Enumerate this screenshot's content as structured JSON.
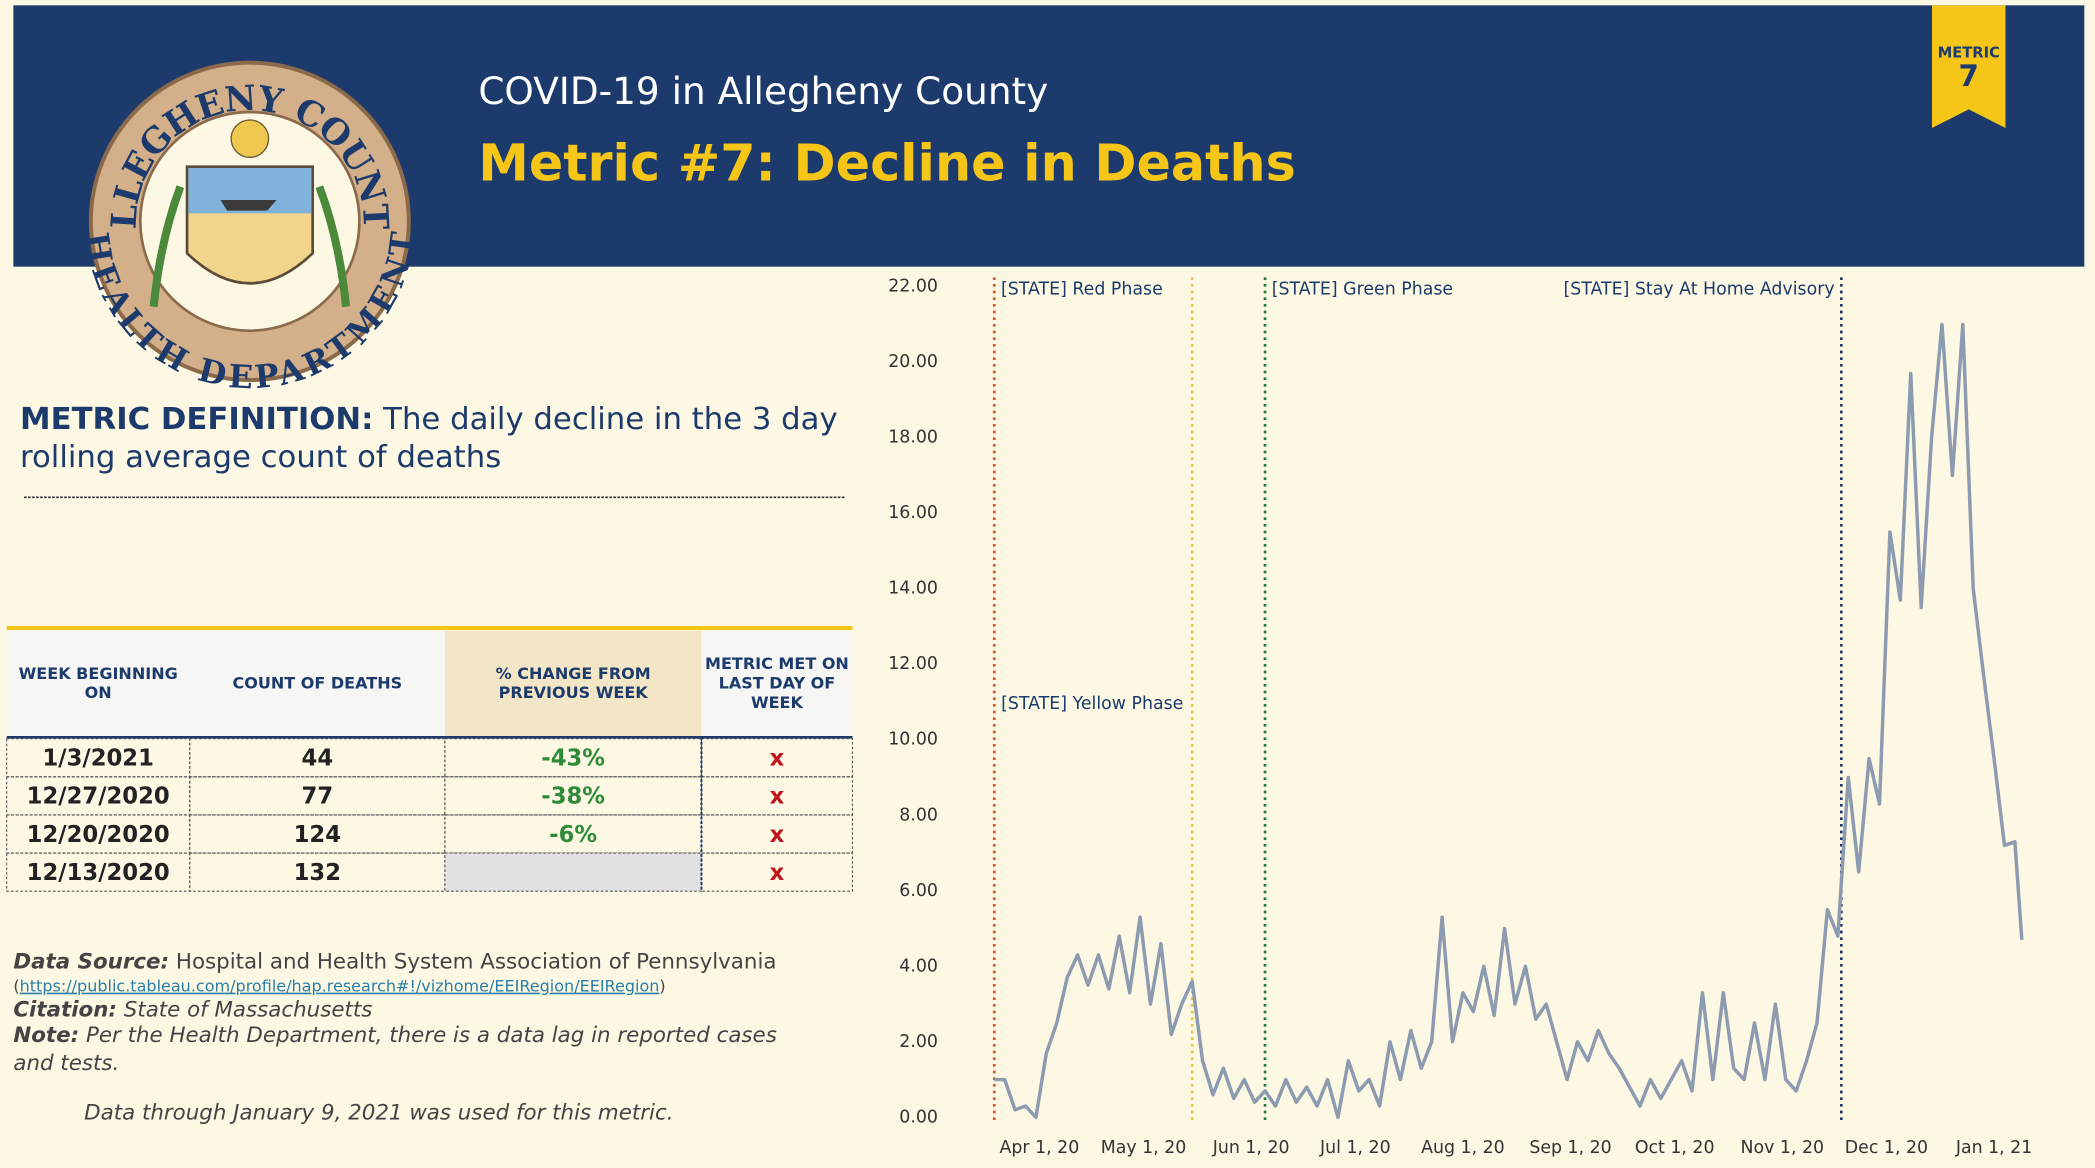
{
  "header": {
    "title": "COVID-19 in Allegheny County",
    "subtitle": "Metric #7: Decline in Deaths"
  },
  "logo": {
    "top_text": "ALLEGHENY COUNTY",
    "bottom_text": "HEALTH DEPARTMENT"
  },
  "badge": {
    "label": "METRIC",
    "number": "7"
  },
  "definition": {
    "label": "METRIC DEFINITION:",
    "lines": [
      "The daily decline in the 3 day",
      "rolling average count of deaths"
    ]
  },
  "table": {
    "headers": [
      [
        "WEEK BEGINNING",
        "ON"
      ],
      [
        "COUNT OF DEATHS"
      ],
      [
        "% CHANGE FROM",
        "PREVIOUS WEEK"
      ],
      [
        "METRIC MET ON",
        "LAST DAY OF",
        "WEEK"
      ]
    ],
    "rows": [
      [
        "1/3/2021",
        "44",
        "-43%",
        "x"
      ],
      [
        "12/27/2020",
        "77",
        "-38%",
        "x"
      ],
      [
        "12/20/2020",
        "124",
        "-6%",
        "x"
      ],
      [
        "12/13/2020",
        "132",
        null,
        "x"
      ]
    ]
  },
  "footer": {
    "source_label": "Data Source:",
    "source_text": "Hospital and Health System Association of Pennsylvania",
    "source_url": "https://public.tableau.com/profile/hap.research#!/vizhome/EEIRegion/EEIRegion",
    "url_open": "(",
    "url_close": ")",
    "citation_label": "Citation:",
    "citation_text": "State of Massachusetts",
    "note_label": "Note:",
    "note_lines": [
      "Per the Health Department, there is a data lag in reported cases",
      "and tests."
    ],
    "data_through": "Data through January 9, 2021 was used for this metric."
  },
  "chart_data": {
    "type": "line",
    "x": [
      "2020-03-19",
      "2020-03-22",
      "2020-03-25",
      "2020-03-28",
      "2020-03-31",
      "2020-04-03",
      "2020-04-06",
      "2020-04-09",
      "2020-04-12",
      "2020-04-15",
      "2020-04-18",
      "2020-04-21",
      "2020-04-24",
      "2020-04-27",
      "2020-04-30",
      "2020-05-03",
      "2020-05-06",
      "2020-05-09",
      "2020-05-12",
      "2020-05-15",
      "2020-05-18",
      "2020-05-21",
      "2020-05-24",
      "2020-05-27",
      "2020-05-30",
      "2020-06-02",
      "2020-06-05",
      "2020-06-08",
      "2020-06-11",
      "2020-06-14",
      "2020-06-17",
      "2020-06-20",
      "2020-06-23",
      "2020-06-26",
      "2020-06-29",
      "2020-07-02",
      "2020-07-05",
      "2020-07-08",
      "2020-07-11",
      "2020-07-14",
      "2020-07-17",
      "2020-07-20",
      "2020-07-23",
      "2020-07-26",
      "2020-07-29",
      "2020-08-01",
      "2020-08-04",
      "2020-08-07",
      "2020-08-10",
      "2020-08-13",
      "2020-08-16",
      "2020-08-19",
      "2020-08-22",
      "2020-08-25",
      "2020-08-28",
      "2020-08-31",
      "2020-09-03",
      "2020-09-06",
      "2020-09-09",
      "2020-09-12",
      "2020-09-15",
      "2020-09-18",
      "2020-09-21",
      "2020-09-24",
      "2020-09-27",
      "2020-09-30",
      "2020-10-03",
      "2020-10-06",
      "2020-10-09",
      "2020-10-12",
      "2020-10-15",
      "2020-10-18",
      "2020-10-21",
      "2020-10-24",
      "2020-10-27",
      "2020-10-30",
      "2020-11-02",
      "2020-11-05",
      "2020-11-08",
      "2020-11-11",
      "2020-11-14",
      "2020-11-17",
      "2020-11-20",
      "2020-11-23",
      "2020-11-26",
      "2020-11-29",
      "2020-12-02",
      "2020-12-05",
      "2020-12-08",
      "2020-12-11",
      "2020-12-14",
      "2020-12-17",
      "2020-12-20",
      "2020-12-23",
      "2020-12-26",
      "2020-12-29",
      "2021-01-01",
      "2021-01-04",
      "2021-01-07",
      "2021-01-09"
    ],
    "series": [
      {
        "color": "#8c9bb0",
        "values": [
          1.0,
          1.0,
          0.2,
          0.3,
          0,
          1.7,
          2.5,
          3.7,
          4.3,
          3.5,
          4.3,
          3.4,
          4.8,
          3.3,
          5.3,
          3.0,
          4.6,
          2.2,
          3.0,
          3.6,
          1.5,
          0.6,
          1.3,
          0.5,
          1.0,
          0.4,
          0.7,
          0.3,
          1.0,
          0.4,
          0.8,
          0.3,
          1.0,
          0,
          1.5,
          0.7,
          1.0,
          0.3,
          2.0,
          1.0,
          2.3,
          1.3,
          2.0,
          5.3,
          2.0,
          3.3,
          2.8,
          4.0,
          2.7,
          5.0,
          3.0,
          4.0,
          2.6,
          3.0,
          2.0,
          1.0,
          2.0,
          1.5,
          2.3,
          1.7,
          1.3,
          0.8,
          0.3,
          1.0,
          0.5,
          1.0,
          1.5,
          0.7,
          3.3,
          1.0,
          3.3,
          1.3,
          1.0,
          2.5,
          1.0,
          3.0,
          1.0,
          0.7,
          1.5,
          2.5,
          5.5,
          4.8,
          9.0,
          6.5,
          9.5,
          8.3,
          15.5,
          13.7,
          19.7,
          13.5,
          18.0,
          21.0,
          17.0,
          21.0,
          14.0,
          11.7,
          9.5,
          7.2,
          7.3,
          4.7
        ]
      }
    ],
    "xlim": [
      "2020-03-02",
      "2021-01-27"
    ],
    "xticks": [
      {
        "value": "2020-04-01",
        "label": "Apr 1, 20"
      },
      {
        "value": "2020-05-01",
        "label": "May 1, 20"
      },
      {
        "value": "2020-06-01",
        "label": "Jun 1, 20"
      },
      {
        "value": "2020-07-01",
        "label": "Jul 1, 20"
      },
      {
        "value": "2020-08-01",
        "label": "Aug 1, 20"
      },
      {
        "value": "2020-09-01",
        "label": "Sep 1, 20"
      },
      {
        "value": "2020-10-01",
        "label": "Oct 1, 20"
      },
      {
        "value": "2020-11-01",
        "label": "Nov 1, 20"
      },
      {
        "value": "2020-12-01",
        "label": "Dec 1, 20"
      },
      {
        "value": "2021-01-01",
        "label": "Jan 1, 21"
      }
    ],
    "ylim": [
      0,
      22
    ],
    "yticks": [
      {
        "value": 0,
        "label": "0.00"
      },
      {
        "value": 2,
        "label": "2.00"
      },
      {
        "value": 4,
        "label": "4.00"
      },
      {
        "value": 6,
        "label": "6.00"
      },
      {
        "value": 8,
        "label": "8.00"
      },
      {
        "value": 10,
        "label": "10.00"
      },
      {
        "value": 12,
        "label": "12.00"
      },
      {
        "value": 14,
        "label": "14.00"
      },
      {
        "value": 16,
        "label": "16.00"
      },
      {
        "value": 18,
        "label": "18.00"
      },
      {
        "value": 20,
        "label": "20.00"
      },
      {
        "value": 22,
        "label": "22.00"
      }
    ],
    "annotations": [
      {
        "label": "[STATE] Red Phase",
        "x": "2020-03-19",
        "color": "#d9541e"
      },
      {
        "label": "[STATE] Yellow Phase",
        "x": "2020-05-15",
        "color": "#e8c53a"
      },
      {
        "label": "[STATE] Green Phase",
        "x": "2020-06-05",
        "color": "#1f7a3a"
      },
      {
        "label": "[STATE] Stay At Home Advisory",
        "x": "2020-11-18",
        "color": "#1c3a6b"
      }
    ]
  }
}
